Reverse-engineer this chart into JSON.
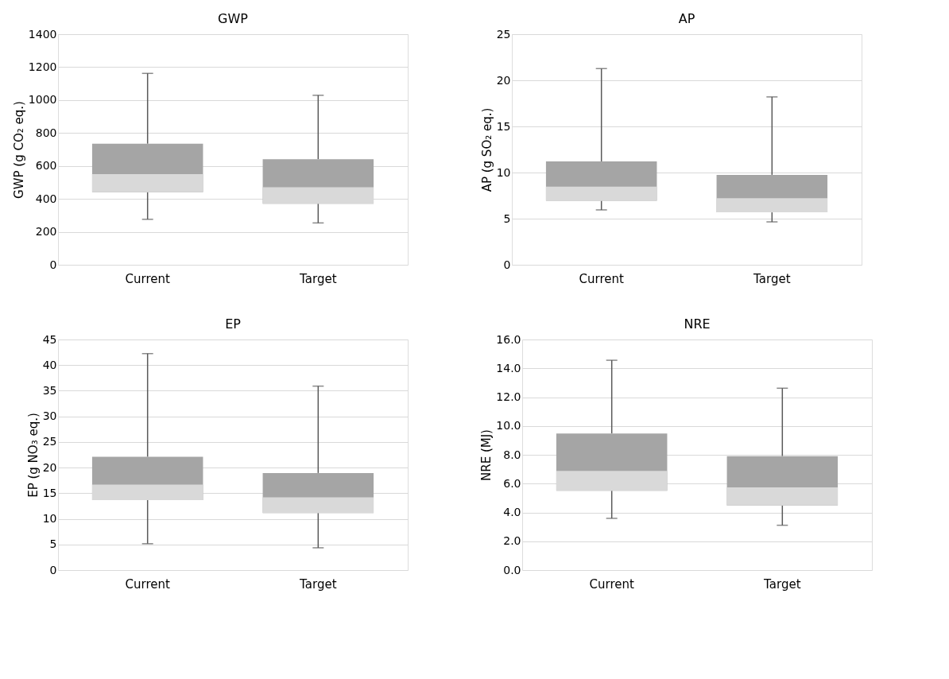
{
  "chart_data": [
    {
      "type": "box",
      "title": "GWP",
      "ylabel": "GWP (g CO₂ eq.)",
      "categories": [
        "Current",
        "Target"
      ],
      "colors": [
        "#a5a5a5",
        "#a5a5a5"
      ],
      "ylim": [
        0,
        1400
      ],
      "yticks": [
        0,
        200,
        400,
        600,
        800,
        1000,
        1200,
        1400
      ],
      "grid": "y",
      "boxes": [
        {
          "low": 276,
          "q1": 441,
          "median": 550,
          "q3": 735,
          "high": 1162
        },
        {
          "low": 254,
          "q1": 371,
          "median": 471,
          "q3": 641,
          "high": 1029
        }
      ]
    },
    {
      "type": "box",
      "title": "AP",
      "ylabel": "AP (g SO₂ eq.)",
      "categories": [
        "Current",
        "Target"
      ],
      "colors": [
        "#a5a5a5",
        "#a5a5a5"
      ],
      "ylim": [
        0,
        25
      ],
      "yticks": [
        0,
        5,
        10,
        15,
        20,
        25
      ],
      "grid": "y",
      "boxes": [
        {
          "low": 5.95,
          "q1": 6.94,
          "median": 8.48,
          "q3": 11.2,
          "high": 21.27
        },
        {
          "low": 4.65,
          "q1": 5.68,
          "median": 7.22,
          "q3": 9.75,
          "high": 18.2
        }
      ]
    },
    {
      "type": "box",
      "title": "EP",
      "ylabel": "EP (g NO₃ eq.)",
      "categories": [
        "Current",
        "Target"
      ],
      "colors": [
        "#a5a5a5",
        "#a5a5a5"
      ],
      "ylim": [
        0,
        45
      ],
      "yticks": [
        0,
        5,
        10,
        15,
        20,
        25,
        30,
        35,
        40,
        45
      ],
      "grid": "y",
      "boxes": [
        {
          "low": 5.15,
          "q1": 13.65,
          "median": 16.7,
          "q3": 22.1,
          "high": 42.25
        },
        {
          "low": 4.35,
          "q1": 11.15,
          "median": 14.2,
          "q3": 18.95,
          "high": 35.9
        }
      ]
    },
    {
      "type": "box",
      "title": "NRE",
      "ylabel": "NRE (MJ)",
      "categories": [
        "Current",
        "Target"
      ],
      "colors": [
        "#a5a5a5",
        "#a5a5a5"
      ],
      "ylim": [
        0,
        16
      ],
      "yticks": [
        {
          "value": 0,
          "label": "0.0"
        },
        {
          "value": 2,
          "label": "2.0"
        },
        {
          "value": 4,
          "label": "4.0"
        },
        {
          "value": 6,
          "label": "6.0"
        },
        {
          "value": 8,
          "label": "8.0"
        },
        {
          "value": 10,
          "label": "10.0"
        },
        {
          "value": 12,
          "label": "12.0"
        },
        {
          "value": 14,
          "label": "14.0"
        },
        {
          "value": 16,
          "label": "16.0"
        }
      ],
      "grid": "y",
      "boxes": [
        {
          "low": 3.59,
          "q1": 5.51,
          "median": 6.88,
          "q3": 9.48,
          "high": 14.56
        },
        {
          "low": 3.11,
          "q1": 4.48,
          "median": 5.74,
          "q3": 7.91,
          "high": 12.62
        }
      ]
    }
  ]
}
